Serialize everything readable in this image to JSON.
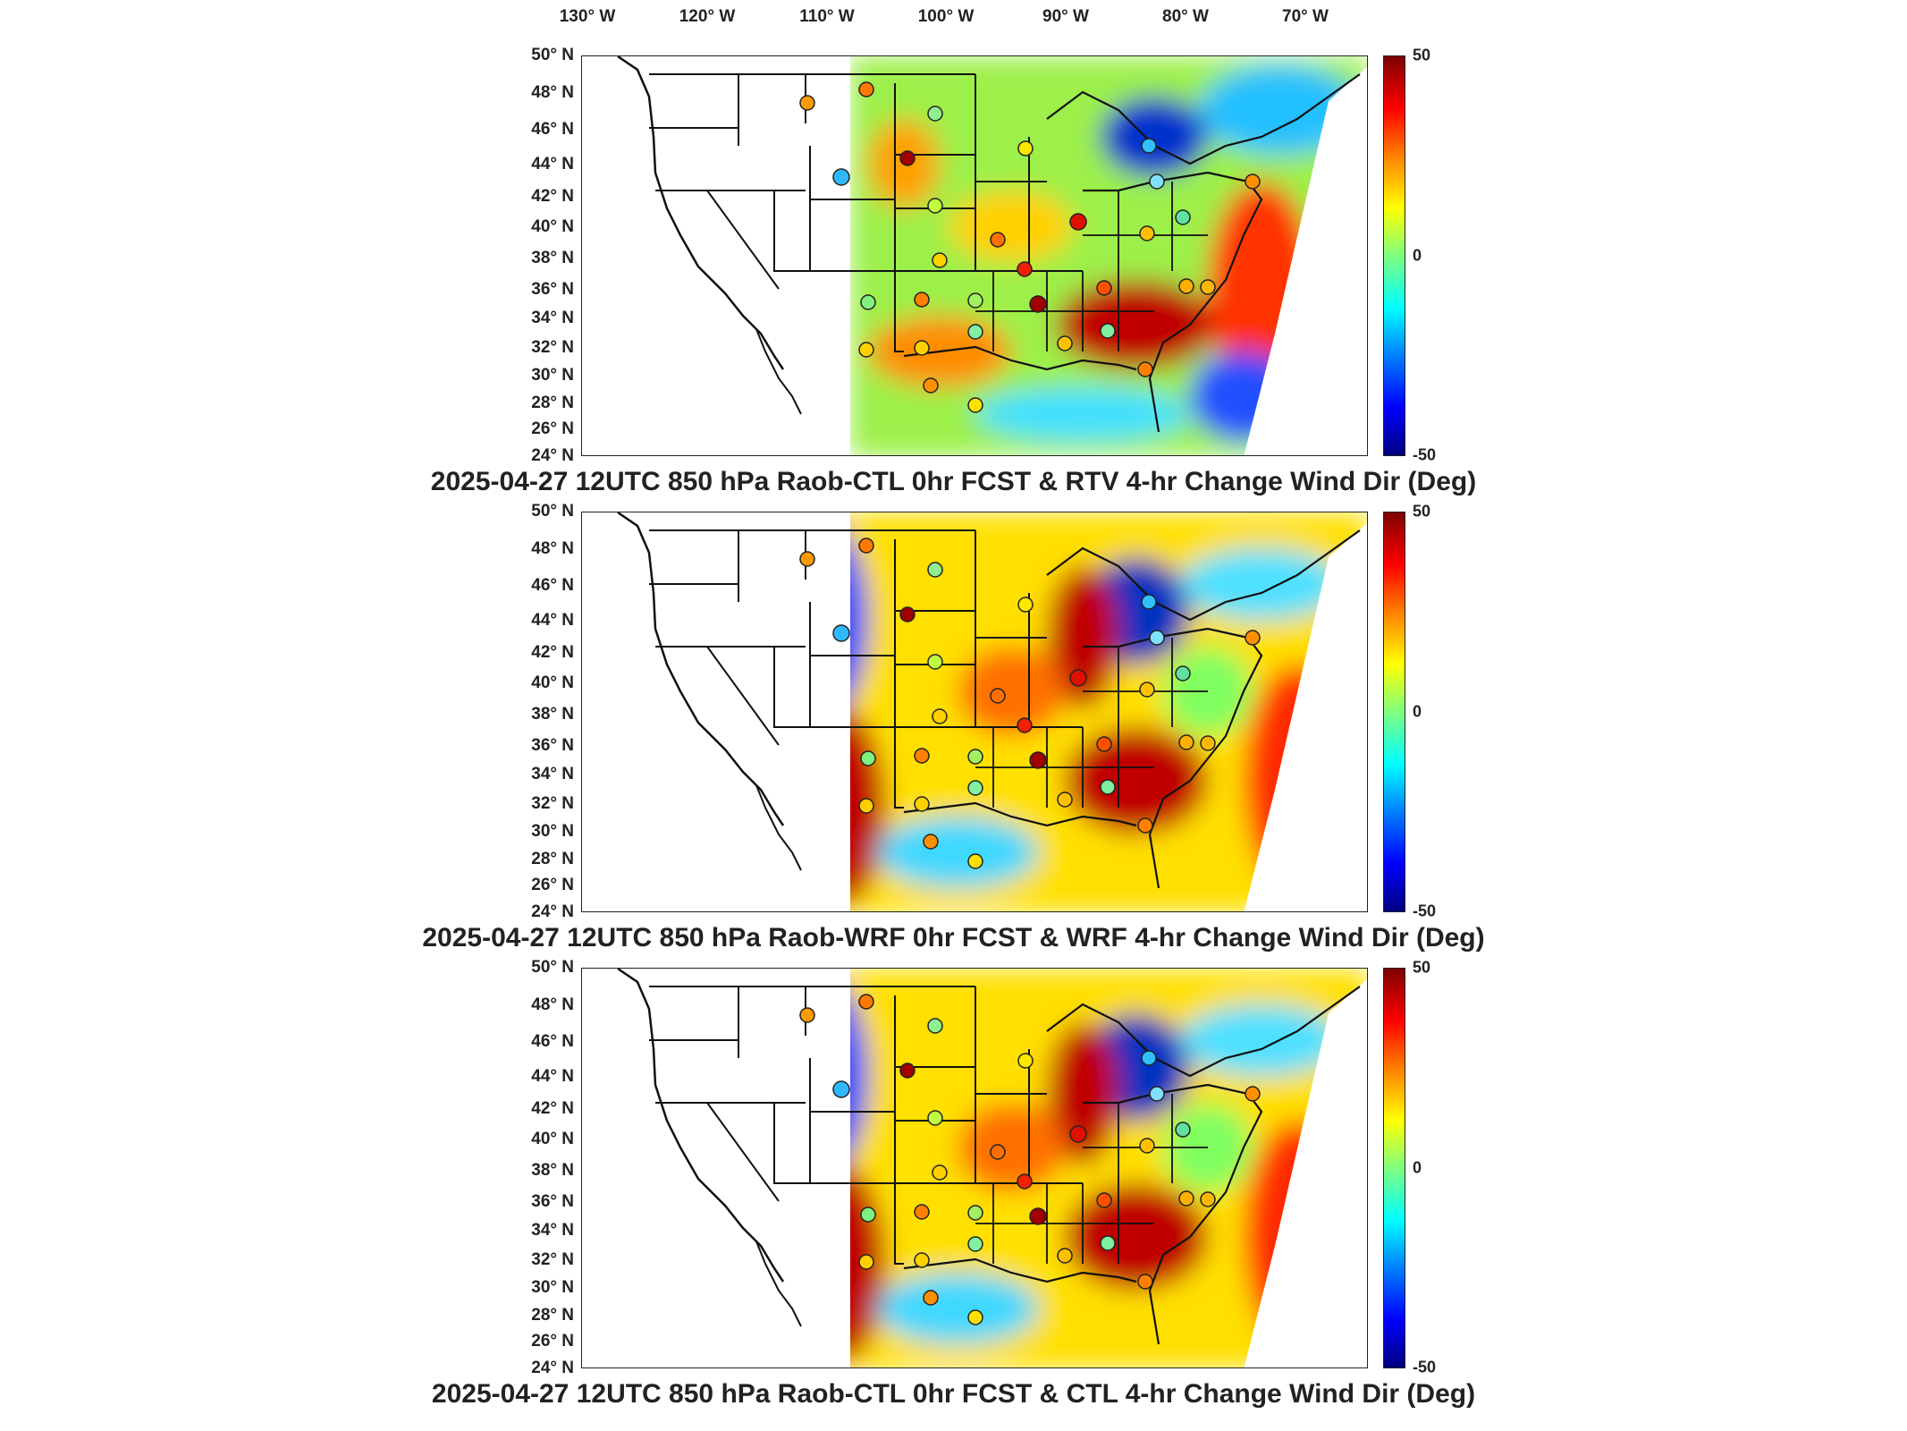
{
  "longitude_labels": [
    "130° W",
    "120° W",
    "110° W",
    "100° W",
    "90° W",
    "80° W",
    "70° W"
  ],
  "latitude_labels": [
    "50° N",
    "48° N",
    "46° N",
    "44° N",
    "42° N",
    "40° N",
    "38° N",
    "36° N",
    "34° N",
    "32° N",
    "30° N",
    "28° N",
    "26° N",
    "24° N"
  ],
  "colorbar": {
    "max": "50",
    "mid": "0",
    "min": "-50",
    "colormap": [
      "#00007f",
      "#0000ff",
      "#0080ff",
      "#00ffff",
      "#7fff7f",
      "#ffff00",
      "#ff8000",
      "#ff0000",
      "#7f0000"
    ]
  },
  "panels": [
    {
      "title": "2025-04-27 12UTC 850 hPa Raob-CTL 0hr FCST & RTV 4-hr Change Wind Dir (Deg)"
    },
    {
      "title": "2025-04-27 12UTC 850 hPa Raob-WRF 0hr FCST & WRF 4-hr Change Wind Dir (Deg)"
    },
    {
      "title": "2025-04-27 12UTC 850 hPa Raob-CTL 0hr FCST & CTL 4-hr Change Wind Dir (Deg)"
    }
  ]
}
